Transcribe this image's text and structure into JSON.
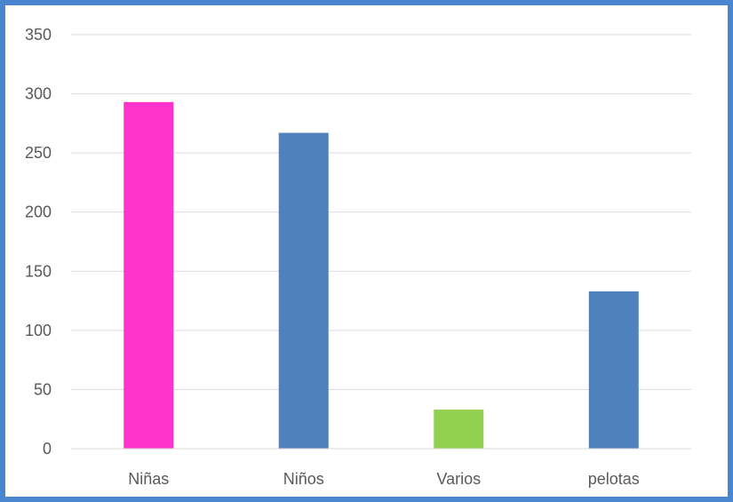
{
  "chart_data": {
    "type": "bar",
    "categories": [
      "Niñas",
      "Niños",
      "Varios",
      "pelotas"
    ],
    "values": [
      293,
      267,
      33,
      133
    ],
    "colors": [
      "#ff33cc",
      "#4f81bd",
      "#92d050",
      "#4f81bd"
    ],
    "ylim": [
      0,
      350
    ],
    "yticks": [
      0,
      50,
      100,
      150,
      200,
      250,
      300,
      350
    ],
    "grid": true,
    "legend": "none"
  }
}
